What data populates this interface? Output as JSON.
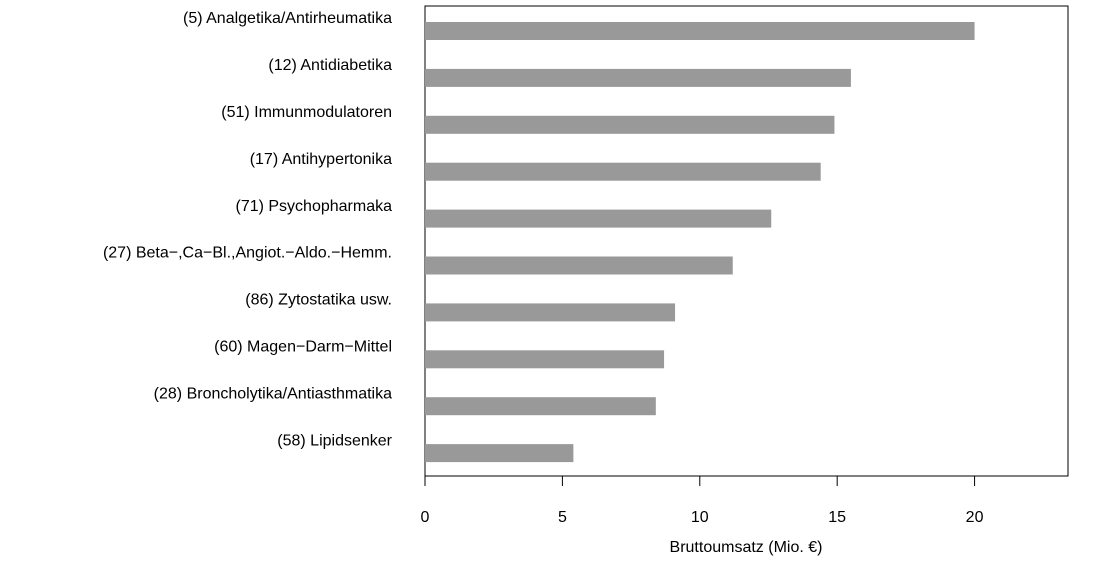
{
  "chart_data": {
    "type": "bar",
    "orientation": "horizontal",
    "categories": [
      "(5) Analgetika/Antirheumatika",
      "(12) Antidiabetika",
      "(51) Immunmodulatoren",
      "(17) Antihypertonika",
      "(71) Psychopharmaka",
      "(27) Beta−,Ca−Bl.,Angiot.−Aldo.−Hemm.",
      "(86) Zytostatika usw.",
      "(60) Magen−Darm−Mittel",
      "(28) Broncholytika/Antiasthmatika",
      "(58) Lipidsenker"
    ],
    "values": [
      20.0,
      15.5,
      14.9,
      14.4,
      12.6,
      11.2,
      9.1,
      8.7,
      8.4,
      5.4
    ],
    "color": "#999999",
    "xlabel": "Bruttoumsatz (Mio. €)",
    "xlim": [
      0,
      23.4
    ],
    "xticks": [
      0,
      5,
      10,
      15,
      20
    ]
  }
}
